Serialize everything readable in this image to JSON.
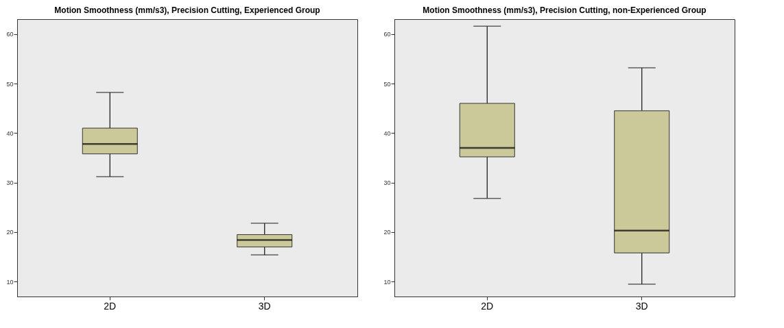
{
  "chart_data": [
    {
      "type": "box",
      "title": "Motion Smoothness (mm/s3), Precision Cutting, Experienced Group",
      "categories": [
        "2D",
        "3D"
      ],
      "ylim": [
        7,
        63
      ],
      "yticks": [
        10,
        20,
        30,
        40,
        50,
        60
      ],
      "series": [
        {
          "color": "#cbc999",
          "boxes": [
            {
              "low": 31.2,
              "q1": 35.8,
              "median": 37.8,
              "q3": 41,
              "high": 48.2
            },
            {
              "low": 15.4,
              "q1": 17,
              "median": 18.4,
              "q3": 19.5,
              "high": 21.8
            }
          ]
        }
      ]
    },
    {
      "type": "box",
      "title": "Motion Smoothness (mm/s3), Precision Cutting, non-Experienced Group",
      "categories": [
        "2D",
        "3D"
      ],
      "ylim": [
        7,
        63
      ],
      "yticks": [
        10,
        20,
        30,
        40,
        50,
        60
      ],
      "series": [
        {
          "color": "#cbc999",
          "boxes": [
            {
              "low": 26.8,
              "q1": 35.2,
              "median": 37,
              "q3": 46,
              "high": 61.6
            },
            {
              "low": 9.5,
              "q1": 15.8,
              "median": 20.3,
              "q3": 44.5,
              "high": 53.2
            }
          ]
        }
      ]
    }
  ]
}
